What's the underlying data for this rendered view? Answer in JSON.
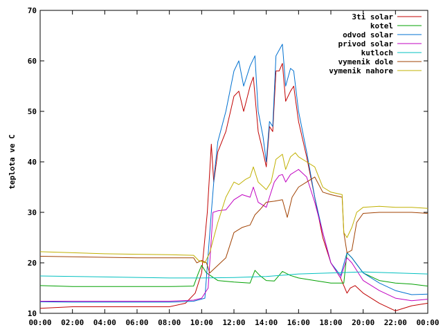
{
  "chart_data": {
    "type": "line",
    "title": "",
    "xlabel": "",
    "ylabel": "teplota ve C",
    "xlim": [
      0,
      24
    ],
    "ylim": [
      10,
      70
    ],
    "grid": false,
    "legend_position": "top-right",
    "x_ticks": [
      "00:00",
      "02:00",
      "04:00",
      "06:00",
      "08:00",
      "10:00",
      "12:00",
      "14:00",
      "16:00",
      "18:00",
      "20:00",
      "22:00",
      "00:00"
    ],
    "y_ticks": [
      "10",
      "20",
      "30",
      "40",
      "50",
      "60",
      "70"
    ],
    "series": [
      {
        "name": "3ti solar",
        "color": "#c00000",
        "points": [
          [
            0,
            11
          ],
          [
            2,
            11.3
          ],
          [
            4,
            11.3
          ],
          [
            6,
            11.3
          ],
          [
            8,
            11.3
          ],
          [
            9,
            12
          ],
          [
            9.6,
            14
          ],
          [
            10,
            18
          ],
          [
            10.35,
            30
          ],
          [
            10.6,
            43.5
          ],
          [
            10.75,
            36
          ],
          [
            11,
            42
          ],
          [
            11.5,
            46
          ],
          [
            12,
            53
          ],
          [
            12.3,
            54
          ],
          [
            12.6,
            50
          ],
          [
            13,
            55
          ],
          [
            13.2,
            56.8
          ],
          [
            13.5,
            46
          ],
          [
            13.8,
            42
          ],
          [
            14,
            39
          ],
          [
            14.2,
            47
          ],
          [
            14.4,
            46
          ],
          [
            14.6,
            58
          ],
          [
            14.8,
            58
          ],
          [
            15,
            59.5
          ],
          [
            15.2,
            52
          ],
          [
            15.5,
            54
          ],
          [
            15.7,
            55
          ],
          [
            16,
            48
          ],
          [
            16.5,
            41
          ],
          [
            17,
            33
          ],
          [
            17.5,
            25
          ],
          [
            18,
            20
          ],
          [
            18.6,
            17
          ],
          [
            19,
            14
          ],
          [
            19.2,
            15
          ],
          [
            19.5,
            15.5
          ],
          [
            20,
            14
          ],
          [
            21,
            12
          ],
          [
            22,
            10.5
          ],
          [
            23,
            11.5
          ],
          [
            24,
            12
          ]
        ]
      },
      {
        "name": "kotel",
        "color": "#00a000",
        "points": [
          [
            0,
            15.5
          ],
          [
            2,
            15.3
          ],
          [
            4,
            15.3
          ],
          [
            6,
            15.3
          ],
          [
            8,
            15.3
          ],
          [
            9.5,
            15.4
          ],
          [
            9.8,
            18
          ],
          [
            10,
            19.5
          ],
          [
            10.3,
            18
          ],
          [
            11,
            16.5
          ],
          [
            12,
            16.2
          ],
          [
            13,
            16
          ],
          [
            13.3,
            18.5
          ],
          [
            13.6,
            17.5
          ],
          [
            14,
            16.5
          ],
          [
            14.5,
            16.4
          ],
          [
            15,
            18.3
          ],
          [
            15.5,
            17.5
          ],
          [
            16,
            17
          ],
          [
            17,
            16.5
          ],
          [
            18,
            16
          ],
          [
            18.8,
            16
          ],
          [
            19,
            22
          ],
          [
            19.3,
            21
          ],
          [
            20,
            18
          ],
          [
            21,
            16.5
          ],
          [
            22,
            16
          ],
          [
            23,
            15.8
          ],
          [
            24,
            15.4
          ]
        ]
      },
      {
        "name": "odvod solar",
        "color": "#0070d0",
        "points": [
          [
            0,
            12.3
          ],
          [
            2,
            12.2
          ],
          [
            4,
            12.2
          ],
          [
            6,
            12.2
          ],
          [
            8,
            12.2
          ],
          [
            9.5,
            12.4
          ],
          [
            10.2,
            13
          ],
          [
            10.6,
            30
          ],
          [
            10.8,
            38
          ],
          [
            11,
            44
          ],
          [
            11.5,
            50
          ],
          [
            12,
            58
          ],
          [
            12.3,
            60
          ],
          [
            12.6,
            55
          ],
          [
            13,
            59
          ],
          [
            13.3,
            61
          ],
          [
            13.5,
            50
          ],
          [
            13.8,
            45
          ],
          [
            14,
            40
          ],
          [
            14.2,
            48
          ],
          [
            14.4,
            47
          ],
          [
            14.6,
            61
          ],
          [
            15,
            63.3
          ],
          [
            15.2,
            55
          ],
          [
            15.5,
            58.5
          ],
          [
            15.7,
            58
          ],
          [
            16,
            50
          ],
          [
            16.5,
            42
          ],
          [
            17,
            33
          ],
          [
            17.5,
            26
          ],
          [
            18,
            20
          ],
          [
            18.6,
            17.5
          ],
          [
            19,
            22
          ],
          [
            19.3,
            21
          ],
          [
            20,
            18
          ],
          [
            21,
            16
          ],
          [
            22,
            14.5
          ],
          [
            23,
            13.7
          ],
          [
            24,
            13.8
          ]
        ]
      },
      {
        "name": "privod solar",
        "color": "#c000c0",
        "points": [
          [
            0,
            12.4
          ],
          [
            2,
            12.4
          ],
          [
            4,
            12.4
          ],
          [
            6,
            12.4
          ],
          [
            8,
            12.4
          ],
          [
            9.5,
            12.6
          ],
          [
            10,
            13
          ],
          [
            10.4,
            15
          ],
          [
            10.7,
            30
          ],
          [
            11,
            30.3
          ],
          [
            11.5,
            30.5
          ],
          [
            12,
            32.5
          ],
          [
            12.5,
            33.5
          ],
          [
            13,
            33
          ],
          [
            13.2,
            35
          ],
          [
            13.5,
            32
          ],
          [
            14,
            31
          ],
          [
            14.2,
            33
          ],
          [
            14.5,
            36
          ],
          [
            14.8,
            37.3
          ],
          [
            15,
            37.5
          ],
          [
            15.2,
            36
          ],
          [
            15.5,
            37.5
          ],
          [
            16,
            38.5
          ],
          [
            16.5,
            37
          ],
          [
            17,
            32
          ],
          [
            17.5,
            26
          ],
          [
            18,
            20
          ],
          [
            18.6,
            17
          ],
          [
            19,
            21
          ],
          [
            19.3,
            20
          ],
          [
            20,
            16.5
          ],
          [
            21,
            14.5
          ],
          [
            22,
            13
          ],
          [
            23,
            12.5
          ],
          [
            24,
            12.8
          ]
        ]
      },
      {
        "name": "kutloch",
        "color": "#00c0c0",
        "points": [
          [
            0,
            17.4
          ],
          [
            4,
            17.2
          ],
          [
            8,
            17
          ],
          [
            10,
            17
          ],
          [
            12,
            17.1
          ],
          [
            14,
            17.3
          ],
          [
            16,
            17.8
          ],
          [
            18,
            18
          ],
          [
            19,
            18.1
          ],
          [
            20,
            18.2
          ],
          [
            22,
            18
          ],
          [
            24,
            17.8
          ]
        ]
      },
      {
        "name": "vymenik dole",
        "color": "#a04000",
        "points": [
          [
            0,
            21.3
          ],
          [
            2,
            21.2
          ],
          [
            4,
            21.1
          ],
          [
            6,
            21
          ],
          [
            8,
            21
          ],
          [
            9.5,
            21
          ],
          [
            9.7,
            20
          ],
          [
            10,
            20.5
          ],
          [
            10.3,
            20
          ],
          [
            10.5,
            18
          ],
          [
            11,
            19.5
          ],
          [
            11.5,
            21
          ],
          [
            12,
            26
          ],
          [
            12.5,
            27
          ],
          [
            13,
            27.5
          ],
          [
            13.3,
            29.5
          ],
          [
            13.6,
            30.5
          ],
          [
            14,
            32
          ],
          [
            14.5,
            32.2
          ],
          [
            15,
            32.5
          ],
          [
            15.3,
            29
          ],
          [
            15.6,
            33
          ],
          [
            16,
            35
          ],
          [
            16.5,
            36
          ],
          [
            17,
            37
          ],
          [
            17.5,
            34
          ],
          [
            18,
            33.5
          ],
          [
            18.7,
            33
          ],
          [
            18.8,
            26
          ],
          [
            19,
            22
          ],
          [
            19.3,
            22.5
          ],
          [
            19.6,
            28
          ],
          [
            20,
            29.8
          ],
          [
            21,
            30
          ],
          [
            22,
            30
          ],
          [
            23,
            30
          ],
          [
            24,
            29.8
          ]
        ]
      },
      {
        "name": "vymenik nahore",
        "color": "#c0b000",
        "points": [
          [
            0,
            22.2
          ],
          [
            2,
            22
          ],
          [
            4,
            21.8
          ],
          [
            6,
            21.7
          ],
          [
            8,
            21.6
          ],
          [
            9.5,
            21.5
          ],
          [
            9.8,
            20.5
          ],
          [
            10.2,
            20
          ],
          [
            10.5,
            22
          ],
          [
            11,
            28
          ],
          [
            11.5,
            33
          ],
          [
            12,
            36
          ],
          [
            12.3,
            35.5
          ],
          [
            12.7,
            36.5
          ],
          [
            13,
            37
          ],
          [
            13.2,
            39
          ],
          [
            13.5,
            36
          ],
          [
            14,
            34.5
          ],
          [
            14.3,
            36
          ],
          [
            14.6,
            40.5
          ],
          [
            15,
            41.5
          ],
          [
            15.2,
            38.5
          ],
          [
            15.5,
            41
          ],
          [
            15.8,
            41.8
          ],
          [
            16,
            41
          ],
          [
            16.5,
            40
          ],
          [
            17,
            39
          ],
          [
            17.5,
            35
          ],
          [
            18,
            34
          ],
          [
            18.7,
            33.5
          ],
          [
            18.8,
            26
          ],
          [
            19,
            25
          ],
          [
            19.3,
            27
          ],
          [
            19.6,
            30
          ],
          [
            20,
            31
          ],
          [
            21,
            31.2
          ],
          [
            22,
            31
          ],
          [
            23,
            31
          ],
          [
            24,
            30.8
          ]
        ]
      }
    ]
  }
}
